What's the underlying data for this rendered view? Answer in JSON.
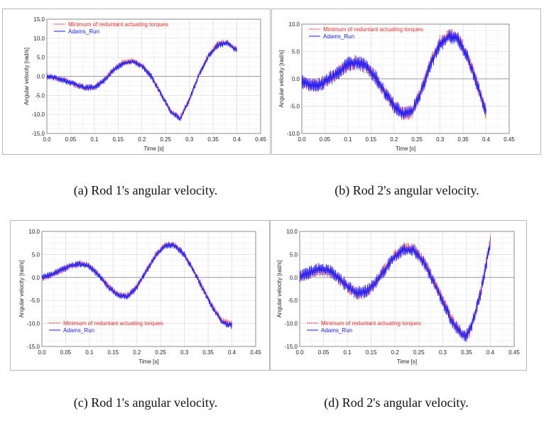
{
  "figure_captions": [
    "(a) Rod 1's angular velocity.",
    "(b) Rod 2's angular velocity.",
    "(c) Rod 1's angular velocity.",
    "(d) Rod 2's angular velocity."
  ],
  "colors": {
    "red_series": "#ff2a2a",
    "blue_series": "#1a1aff",
    "grid": "#dcdcdc",
    "zero_line": "#9a9a9a"
  },
  "chart_data": [
    {
      "type": "line",
      "panel": "a",
      "xlabel": "Time [s]",
      "ylabel": "Angular velocity [rad/s]",
      "xlim": [
        0.0,
        0.45
      ],
      "ylim": [
        -15.0,
        15.0
      ],
      "xticks": [
        "0.0",
        "0.05",
        "0.1",
        "0.15",
        "0.2",
        "0.25",
        "0.3",
        "0.35",
        "0.4",
        "0.45"
      ],
      "yticks": [
        "15.0",
        "10.0",
        "5.0",
        "0.0",
        "-5.0",
        "-10.0",
        "-15.0"
      ],
      "legend": [
        "Minimum of reduntant actuating torques",
        "Adams_Run"
      ],
      "legend_position": "top-left",
      "noise": 0.9,
      "x": [
        0.0,
        0.02,
        0.04,
        0.06,
        0.08,
        0.1,
        0.12,
        0.14,
        0.16,
        0.18,
        0.2,
        0.22,
        0.24,
        0.26,
        0.28,
        0.3,
        0.32,
        0.34,
        0.36,
        0.38,
        0.4
      ],
      "series": [
        {
          "name": "Minimum of reduntant actuating torques",
          "style": "dashed",
          "values": [
            0.0,
            -0.5,
            -1.2,
            -2.2,
            -3.0,
            -2.8,
            -1.0,
            1.8,
            3.6,
            4.0,
            2.8,
            0.0,
            -4.5,
            -9.0,
            -11.0,
            -6.0,
            0.5,
            5.5,
            8.5,
            9.0,
            7.0
          ]
        },
        {
          "name": "Adams_Run",
          "style": "solid",
          "values": [
            0.0,
            -0.4,
            -1.2,
            -2.1,
            -3.0,
            -2.9,
            -1.2,
            1.6,
            3.4,
            3.9,
            2.7,
            -0.1,
            -4.6,
            -9.2,
            -11.2,
            -6.2,
            0.3,
            5.3,
            8.2,
            8.7,
            6.8
          ]
        }
      ]
    },
    {
      "type": "line",
      "panel": "b",
      "xlabel": "Time [s]",
      "ylabel": "Angular velocity [rad/s]",
      "xlim": [
        0.0,
        0.45
      ],
      "ylim": [
        -10.0,
        10.0
      ],
      "xticks": [
        "0.0",
        "0.05",
        "0.1",
        "0.15",
        "0.2",
        "0.25",
        "0.3",
        "0.35",
        "0.4",
        "0.45"
      ],
      "yticks": [
        "10.0",
        "5.0",
        "0.0",
        "-5.0",
        "-10.0"
      ],
      "legend": [
        "Minimum of reduntant actuating torques",
        "Adams_Run"
      ],
      "legend_position": "top-left",
      "noise": 1.4,
      "x": [
        0.0,
        0.02,
        0.04,
        0.06,
        0.08,
        0.1,
        0.12,
        0.14,
        0.16,
        0.18,
        0.2,
        0.22,
        0.24,
        0.26,
        0.28,
        0.3,
        0.32,
        0.34,
        0.36,
        0.38,
        0.4
      ],
      "series": [
        {
          "name": "Minimum of reduntant actuating torques",
          "style": "dashed",
          "values": [
            -0.5,
            -1.2,
            -1.0,
            0.0,
            1.2,
            2.5,
            3.0,
            2.2,
            0.2,
            -2.5,
            -5.0,
            -6.5,
            -6.0,
            -2.0,
            3.0,
            6.5,
            8.0,
            7.5,
            4.0,
            -0.8,
            -6.5
          ]
        },
        {
          "name": "Adams_Run",
          "style": "solid",
          "values": [
            -0.5,
            -1.2,
            -1.0,
            0.0,
            1.3,
            2.6,
            3.1,
            2.3,
            0.3,
            -2.4,
            -4.9,
            -6.4,
            -5.9,
            -2.1,
            2.8,
            6.3,
            7.8,
            7.3,
            3.8,
            -1.0,
            -6.3
          ]
        }
      ]
    },
    {
      "type": "line",
      "panel": "c",
      "xlabel": "Time [s]",
      "ylabel": "Angular velocity [rad/s]",
      "xlim": [
        0.0,
        0.45
      ],
      "ylim": [
        -15.0,
        10.0
      ],
      "xticks": [
        "0.0",
        "0.05",
        "0.1",
        "0.15",
        "0.2",
        "0.25",
        "0.3",
        "0.35",
        "0.4",
        "0.45"
      ],
      "yticks": [
        "10.0",
        "5.0",
        "0.0",
        "-5.0",
        "-10.0",
        "-15.0"
      ],
      "legend": [
        "Minimum of reduntant actuating torques",
        "Adams_Run"
      ],
      "legend_position": "bottom-left",
      "noise": 0.8,
      "x": [
        0.0,
        0.02,
        0.04,
        0.06,
        0.08,
        0.1,
        0.12,
        0.14,
        0.16,
        0.18,
        0.2,
        0.22,
        0.24,
        0.26,
        0.28,
        0.3,
        0.32,
        0.34,
        0.36,
        0.38,
        0.4
      ],
      "series": [
        {
          "name": "Minimum of reduntant actuating torques",
          "style": "dashed",
          "values": [
            0.0,
            0.5,
            1.5,
            2.5,
            3.0,
            2.5,
            0.5,
            -2.0,
            -3.8,
            -4.0,
            -2.0,
            1.5,
            5.0,
            7.2,
            7.0,
            5.0,
            1.5,
            -2.5,
            -6.5,
            -9.5,
            -10.0
          ]
        },
        {
          "name": "Adams_Run",
          "style": "solid",
          "values": [
            0.0,
            0.6,
            1.6,
            2.5,
            2.9,
            2.4,
            0.4,
            -2.1,
            -3.9,
            -4.1,
            -2.1,
            1.4,
            4.8,
            7.0,
            6.9,
            4.9,
            1.3,
            -2.7,
            -6.7,
            -9.8,
            -10.5
          ]
        }
      ]
    },
    {
      "type": "line",
      "panel": "d",
      "xlabel": "Time [s]",
      "ylabel": "Angular velocity [rad/s]",
      "xlim": [
        0.0,
        0.45
      ],
      "ylim": [
        -15.0,
        10.0
      ],
      "xticks": [
        "0.0",
        "0.05",
        "0.1",
        "0.15",
        "0.2",
        "0.25",
        "0.3",
        "0.35",
        "0.4",
        "0.45"
      ],
      "yticks": [
        "10.0",
        "5.0",
        "0.0",
        "-5.0",
        "-10.0",
        "-15.0"
      ],
      "legend": [
        "Minimum of reduntant actuating torques",
        "Adams_Run"
      ],
      "legend_position": "bottom-left",
      "noise": 1.5,
      "x": [
        0.0,
        0.02,
        0.04,
        0.06,
        0.08,
        0.1,
        0.12,
        0.14,
        0.16,
        0.18,
        0.2,
        0.22,
        0.24,
        0.26,
        0.28,
        0.3,
        0.32,
        0.34,
        0.35,
        0.36,
        0.38,
        0.4
      ],
      "series": [
        {
          "name": "Minimum of reduntant actuating torques",
          "style": "dashed",
          "values": [
            0.0,
            1.0,
            1.8,
            1.5,
            0.0,
            -2.0,
            -3.5,
            -3.0,
            -1.0,
            2.0,
            4.8,
            6.3,
            6.0,
            3.5,
            -0.5,
            -5.0,
            -9.5,
            -12.5,
            -12.8,
            -11.0,
            -3.0,
            8.0
          ]
        },
        {
          "name": "Adams_Run",
          "style": "solid",
          "values": [
            0.0,
            1.1,
            1.9,
            1.6,
            0.1,
            -1.9,
            -3.4,
            -3.0,
            -1.1,
            1.8,
            4.6,
            6.1,
            5.8,
            3.3,
            -0.7,
            -5.2,
            -9.7,
            -12.3,
            -12.5,
            -10.8,
            -3.3,
            7.5
          ]
        }
      ]
    }
  ]
}
